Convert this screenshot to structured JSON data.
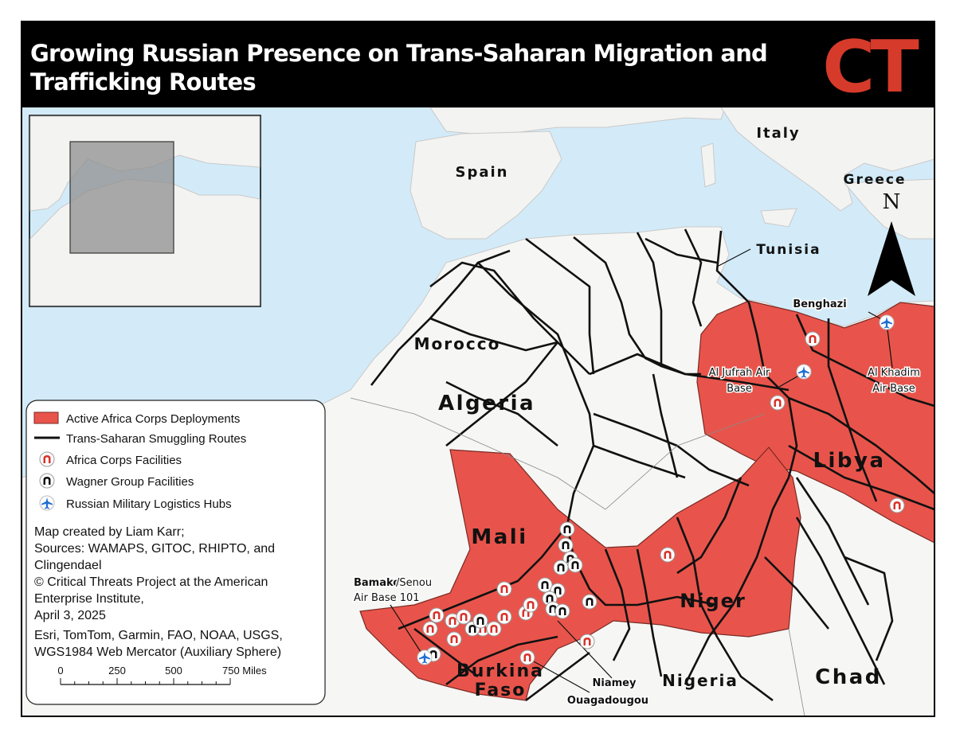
{
  "header": {
    "title_lines": [
      "Growing Russian Presence on Trans-Saharan Migration and",
      "Trafficking Routes"
    ],
    "logo": "CT"
  },
  "map": {
    "countries": [
      [
        "Spain"
      ],
      [
        "Italy"
      ],
      [
        "Greece"
      ],
      [
        "Tunisia"
      ],
      [
        "Morocco"
      ],
      [
        "Algeria"
      ],
      [
        "Libya"
      ],
      [
        "Mali"
      ],
      [
        "Niger"
      ],
      [
        "Nigeria"
      ],
      [
        "Chad"
      ],
      [
        "Burkina",
        "Faso"
      ]
    ],
    "places": [
      [
        "Benghazi"
      ],
      [
        "Al Jufrah Air",
        "Base"
      ],
      [
        "Al Khadim",
        "Air Base"
      ],
      [
        "Bamako",
        "/Senou",
        "Air Base 101"
      ],
      [
        "Niamey"
      ],
      [
        "Ouagadougou"
      ]
    ],
    "north_arrow": "N"
  },
  "legend": {
    "items": [
      "Active Africa Corps Deployments",
      "Trans-Saharan Smuggling Routes",
      "Africa Corps Facilities",
      "Wagner Group Facilities",
      "Russian Military Logistics Hubs"
    ],
    "credits": [
      "Map created by Liam Karr;",
      "Sources: WAMAPS, GITOC, RHIPTO, and",
      "Clingendael",
      "© Critical Threats Project at the American",
      "Enterprise Institute,",
      "April 3, 2025",
      "Esri, TomTom, Garmin, FAO, NOAA, USGS,",
      "WGS1984 Web Mercator (Auxiliary Sphere)"
    ],
    "scale_bar": [
      "0",
      "250",
      "500",
      "750 Miles"
    ]
  }
}
